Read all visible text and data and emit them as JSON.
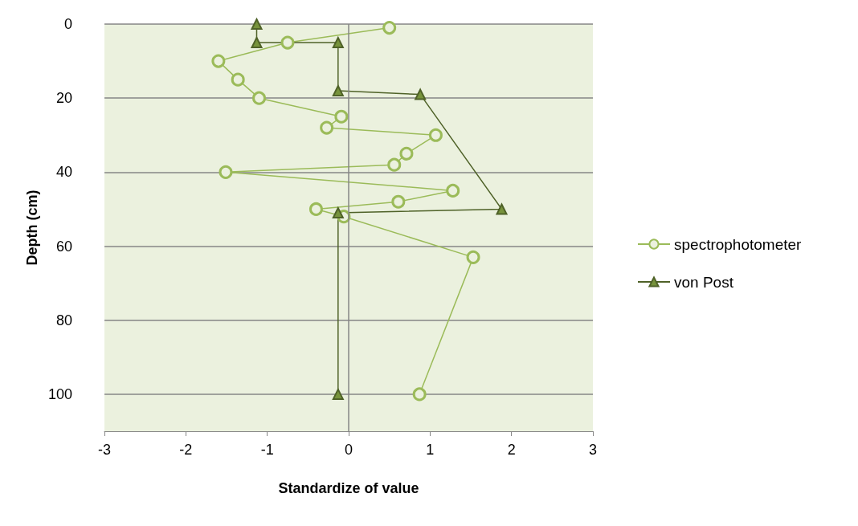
{
  "chart_data": {
    "type": "line",
    "xlabel": "Standardize of value",
    "ylabel": "Depth (cm)",
    "xlim": [
      -3,
      3
    ],
    "xticks": [
      -3,
      -2,
      -1,
      0,
      1,
      2,
      3
    ],
    "ylim": [
      110,
      0
    ],
    "yticks": [
      0,
      20,
      40,
      60,
      80,
      100
    ],
    "grid": "y",
    "legend": "right",
    "ref_lines": [
      {
        "axis": "x",
        "value": 0,
        "color": "#868686"
      }
    ],
    "series": [
      {
        "name": "spectrophotometer",
        "color": "#9bbb59",
        "marker": "circle",
        "x": [
          0.5,
          -0.75,
          -1.6,
          -1.36,
          -1.1,
          -0.09,
          -0.27,
          1.07,
          0.71,
          0.56,
          -1.51,
          1.28,
          0.61,
          -0.4,
          -0.06,
          1.53,
          0.87
        ],
        "values": [
          1,
          5,
          10,
          15,
          20,
          25,
          28,
          30,
          35,
          38,
          40,
          45,
          48,
          50,
          52,
          63,
          100
        ]
      },
      {
        "name": "von Post",
        "color": "#4f6228",
        "marker": "triangle",
        "x": [
          -1.13,
          -1.13,
          -0.13,
          -0.13,
          0.88,
          1.88,
          -0.13,
          -0.13
        ],
        "values": [
          0,
          5,
          5,
          18,
          19,
          50,
          51,
          100
        ]
      }
    ]
  }
}
